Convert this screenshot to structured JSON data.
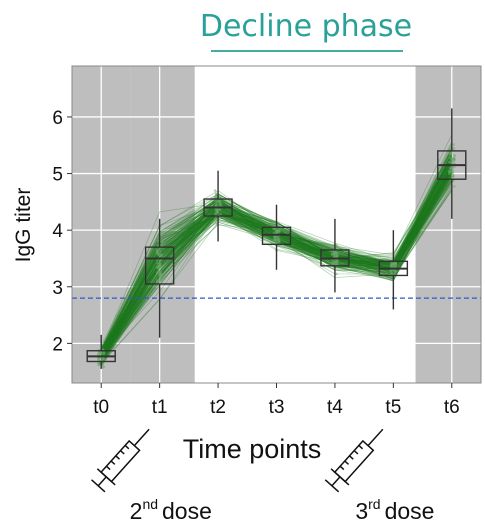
{
  "title": "Decline phase",
  "chart_data": {
    "type": "box",
    "categories": [
      "t0",
      "t1",
      "t2",
      "t3",
      "t4",
      "t5",
      "t6"
    ],
    "xlabel": "Time points",
    "ylabel": "IgG titer",
    "ylim": [
      1.3,
      6.9
    ],
    "yticks": [
      2,
      3,
      4,
      5,
      6
    ],
    "grid": true,
    "threshold": 2.8,
    "shaded_categories": [
      "t0",
      "t1",
      "t6"
    ],
    "series": [
      {
        "x": "t0",
        "q1": 1.68,
        "median": 1.77,
        "q3": 1.87,
        "whisker_low": 1.55,
        "whisker_high": 2.15
      },
      {
        "x": "t1",
        "q1": 3.05,
        "median": 3.5,
        "q3": 3.7,
        "whisker_low": 2.1,
        "whisker_high": 4.2
      },
      {
        "x": "t2",
        "q1": 4.25,
        "median": 4.4,
        "q3": 4.55,
        "whisker_low": 3.8,
        "whisker_high": 5.05
      },
      {
        "x": "t3",
        "q1": 3.75,
        "median": 3.92,
        "q3": 4.05,
        "whisker_low": 3.3,
        "whisker_high": 4.45
      },
      {
        "x": "t4",
        "q1": 3.37,
        "median": 3.5,
        "q3": 3.65,
        "whisker_low": 2.9,
        "whisker_high": 4.2
      },
      {
        "x": "t5",
        "q1": 3.2,
        "median": 3.32,
        "q3": 3.45,
        "whisker_low": 2.6,
        "whisker_high": 4.0
      },
      {
        "x": "t6",
        "q1": 4.9,
        "median": 5.15,
        "q3": 5.4,
        "whisker_low": 4.2,
        "whisker_high": 6.15
      }
    ],
    "annotations": [
      {
        "x": "t1",
        "base": "2",
        "sup": "nd",
        "text": "dose"
      },
      {
        "x": "t5",
        "base": "3",
        "sup": "rd",
        "text": "dose"
      }
    ]
  }
}
